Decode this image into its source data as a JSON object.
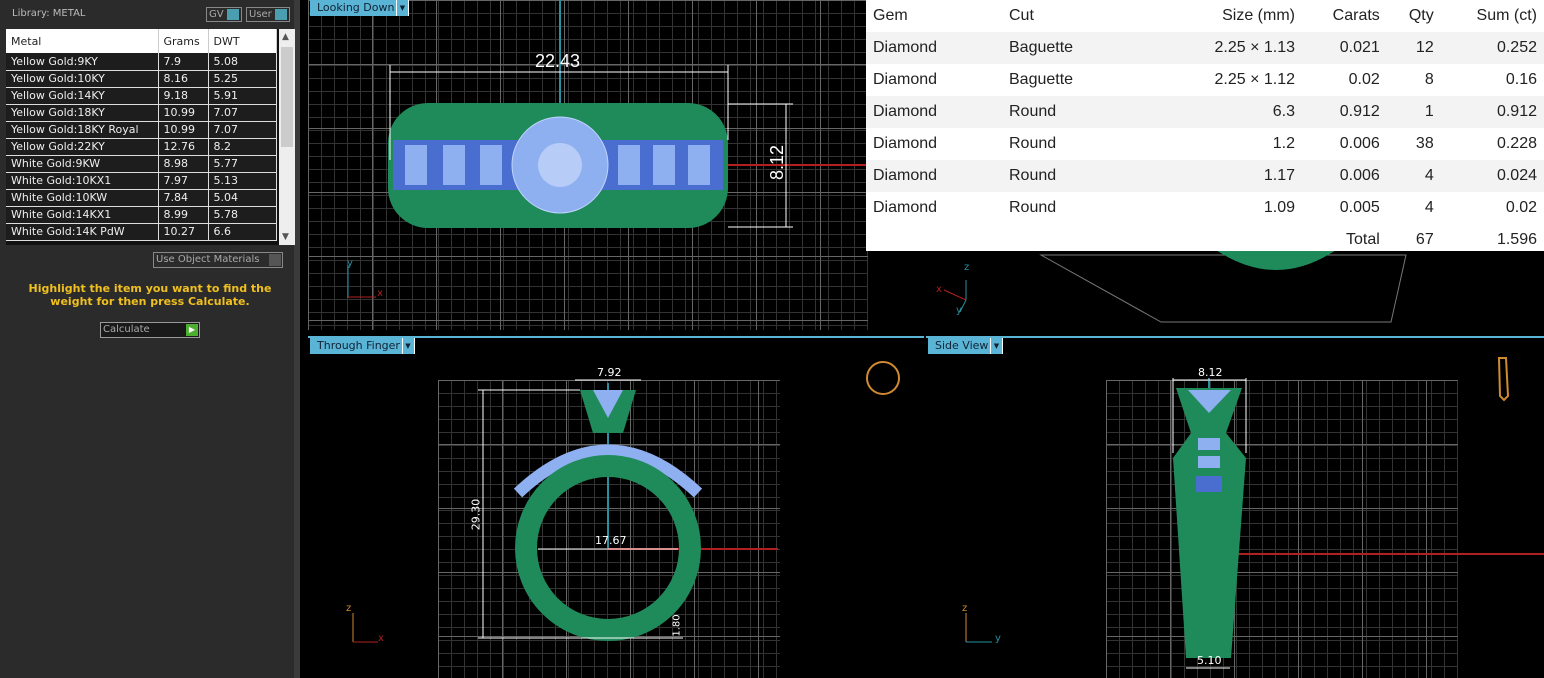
{
  "library": {
    "title": "Library: METAL",
    "gv_label": "GV",
    "user_label": "User"
  },
  "metal_table": {
    "headers": [
      "Metal",
      "Grams",
      "DWT"
    ],
    "rows": [
      [
        "Yellow Gold:9KY",
        "7.9",
        "5.08"
      ],
      [
        "Yellow Gold:10KY",
        "8.16",
        "5.25"
      ],
      [
        "Yellow Gold:14KY",
        "9.18",
        "5.91"
      ],
      [
        "Yellow Gold:18KY",
        "10.99",
        "7.07"
      ],
      [
        "Yellow Gold:18KY Royal",
        "10.99",
        "7.07"
      ],
      [
        "Yellow Gold:22KY",
        "12.76",
        "8.2"
      ],
      [
        "White Gold:9KW",
        "8.98",
        "5.77"
      ],
      [
        "White Gold:10KX1",
        "7.97",
        "5.13"
      ],
      [
        "White Gold:10KW",
        "7.84",
        "5.04"
      ],
      [
        "White Gold:14KX1",
        "8.99",
        "5.78"
      ],
      [
        "White Gold:14K PdW",
        "10.27",
        "6.6"
      ]
    ]
  },
  "use_object_materials": "Use Object Materials",
  "hint": "Highlight the item you want to find the weight for then press Calculate.",
  "calculate_label": "Calculate",
  "viewports": {
    "top_left": {
      "label": "Looking Down",
      "dims": [
        "22.43",
        "8.12"
      ],
      "axes": [
        "y",
        "x"
      ]
    },
    "top_right": {
      "axes": [
        "z",
        "x",
        "y"
      ]
    },
    "bottom_left": {
      "label": "Through Finger",
      "dims": [
        "7.92",
        "29.30",
        "17.67",
        "1.80"
      ],
      "axes": [
        "z",
        "x"
      ]
    },
    "bottom_right": {
      "label": "Side View",
      "dims": [
        "8.12",
        "5.10"
      ],
      "axes": [
        "z",
        "y"
      ]
    }
  },
  "gem_table": {
    "headers": [
      "Gem",
      "Cut",
      "Size (mm)",
      "Carats",
      "Qty",
      "Sum (ct)"
    ],
    "rows": [
      [
        "Diamond",
        "Baguette",
        "2.25 × 1.13",
        "0.021",
        "12",
        "0.252"
      ],
      [
        "Diamond",
        "Baguette",
        "2.25 × 1.12",
        "0.02",
        "8",
        "0.16"
      ],
      [
        "Diamond",
        "Round",
        "6.3",
        "0.912",
        "1",
        "0.912"
      ],
      [
        "Diamond",
        "Round",
        "1.2",
        "0.006",
        "38",
        "0.228"
      ],
      [
        "Diamond",
        "Round",
        "1.17",
        "0.006",
        "4",
        "0.024"
      ],
      [
        "Diamond",
        "Round",
        "1.09",
        "0.005",
        "4",
        "0.02"
      ]
    ],
    "total_label": "Total",
    "total_qty": "67",
    "total_sum": "1.596"
  },
  "colors": {
    "metal": "#1f8a5a",
    "gem": "#8fb0f0",
    "accent": "#5ab4d6",
    "hint": "#f0c020"
  }
}
